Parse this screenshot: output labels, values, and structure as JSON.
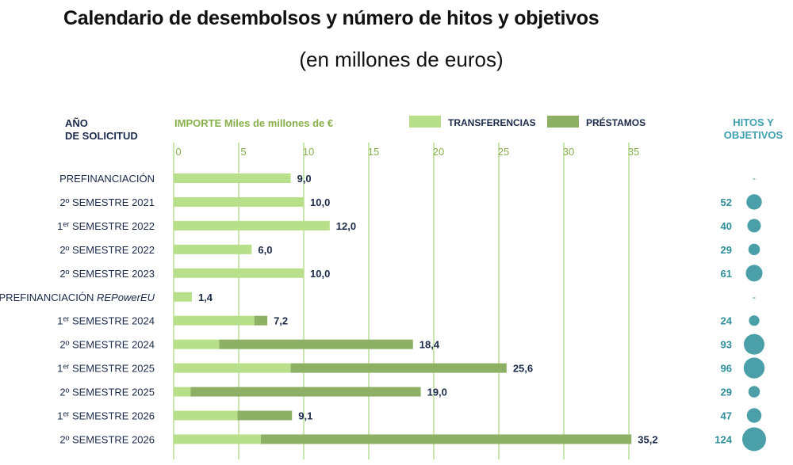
{
  "title": "Calendario de desembolsos y número de hitos y objetivos",
  "subtitle": "(en millones de euros)",
  "headers": {
    "year": "AÑO\nDE SOLICITUD",
    "amount": "IMPORTE Miles de millones de €",
    "hitos": "HITOS Y\nOBJETIVOS"
  },
  "legend": [
    {
      "label": "TRANSFERENCIAS",
      "color": "#b8e08a"
    },
    {
      "label": "PRÉSTAMOS",
      "color": "#8db065"
    }
  ],
  "colors": {
    "transfer": "#b8e08a",
    "loan": "#8db065",
    "grid": "#a8d47a",
    "bubble": "#4a9fa8",
    "hitos_text": "#2f8f9b",
    "label_text": "#1b2a4a"
  },
  "chart_data": {
    "type": "bar",
    "orientation": "horizontal",
    "stacked": true,
    "xlim": [
      0,
      35
    ],
    "x_ticks": [
      0,
      5,
      10,
      15,
      20,
      25,
      30,
      35
    ],
    "categories": [
      "PREFINANCIACIÓN",
      "2º SEMESTRE 2021",
      "1er SEMESTRE 2022",
      "2º SEMESTRE 2022",
      "2º SEMESTRE 2023",
      "PREFINANCIACIÓN REPowerEU",
      "1er SEMESTRE 2024",
      "2º SEMESTRE 2024",
      "1er SEMESTRE 2025",
      "2º SEMESTRE 2025",
      "1er SEMESTRE 2026",
      "2º SEMESTRE 2026"
    ],
    "series": [
      {
        "name": "TRANSFERENCIAS",
        "values": [
          9.0,
          10.0,
          12.0,
          6.0,
          10.0,
          1.4,
          6.2,
          3.5,
          9.0,
          1.3,
          4.9,
          6.7
        ]
      },
      {
        "name": "PRÉSTAMOS",
        "values": [
          0,
          0,
          0,
          0,
          0,
          0,
          1.0,
          14.9,
          16.6,
          17.7,
          4.2,
          28.5
        ]
      }
    ],
    "totals": [
      "9,0",
      "10,0",
      "12,0",
      "6,0",
      "10,0",
      "1,4",
      "7,2",
      "18,4",
      "25,6",
      "19,0",
      "9,1",
      "35,2"
    ],
    "hitos": [
      "-",
      "52",
      "40",
      "29",
      "61",
      "-",
      "24",
      "93",
      "96",
      "29",
      "47",
      "124"
    ],
    "hitos_values": [
      0,
      52,
      40,
      29,
      61,
      0,
      24,
      93,
      96,
      29,
      47,
      124
    ]
  }
}
